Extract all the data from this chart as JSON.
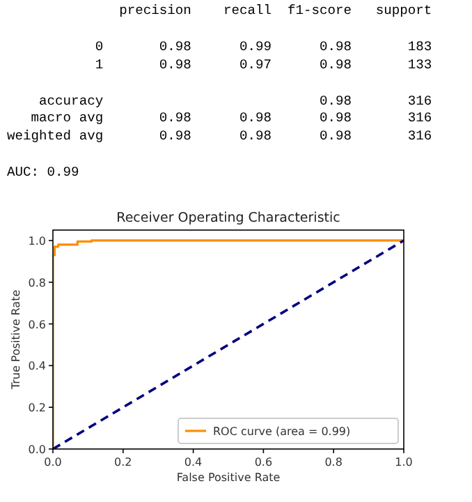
{
  "chart_data": {
    "type": "line",
    "title": "Receiver Operating Characteristic",
    "xlabel": "False Positive Rate",
    "ylabel": "True Positive Rate",
    "annotations": [
      "              precision    recall  f1-score   support",
      "           0       0.98      0.99      0.98       183",
      "           1       0.98      0.97      0.98       133",
      "    accuracy                           0.98       316",
      "   macro avg       0.98      0.98      0.98       316",
      "weighted avg       0.98      0.98      0.98       316",
      "AUC: 0.99"
    ],
    "xlim": [
      0,
      1
    ],
    "ylim": [
      0,
      1.05
    ],
    "xticks": [
      {
        "value": 0,
        "label": "0.0"
      },
      {
        "value": 0.2,
        "label": "0.2"
      },
      {
        "value": 0.4,
        "label": "0.4"
      },
      {
        "value": 0.6,
        "label": "0.6"
      },
      {
        "value": 0.8,
        "label": "0.8"
      },
      {
        "value": 1,
        "label": "1.0"
      }
    ],
    "yticks": [
      {
        "value": 0,
        "label": "0.0"
      },
      {
        "value": 0.2,
        "label": "0.2"
      },
      {
        "value": 0.4,
        "label": "0.4"
      },
      {
        "value": 0.6,
        "label": "0.6"
      },
      {
        "value": 0.8,
        "label": "0.8"
      },
      {
        "value": 1,
        "label": "1.0"
      }
    ],
    "legend": "bottom right",
    "series": [
      {
        "name": "ROC curve (area = 0.99)",
        "color": "#ff8c00",
        "x": [
          0,
          0,
          0.005,
          0.005,
          0.015,
          0.015,
          0.07,
          0.07,
          0.11,
          0.11,
          1
        ],
        "values": [
          0,
          0.93,
          0.93,
          0.97,
          0.97,
          0.98,
          0.98,
          0.995,
          0.995,
          1,
          1
        ]
      },
      {
        "color": "#000080",
        "line_style": "dashed",
        "x": [
          0,
          1
        ],
        "values": [
          0,
          1
        ]
      }
    ]
  }
}
